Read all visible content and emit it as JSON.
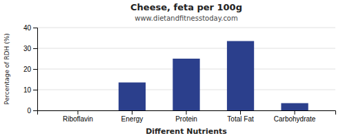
{
  "chart_data": {
    "type": "bar",
    "title": "Cheese, feta per 100g",
    "subtitle": "www.dietandfitnesstoday.com",
    "xlabel": "Different Nutrients",
    "ylabel": "Percentage of RDH (%)",
    "categories": [
      "Riboflavin",
      "Energy",
      "Protein",
      "Total Fat",
      "Carbohydrate"
    ],
    "values": [
      0,
      13.5,
      25,
      33.5,
      3.5
    ],
    "color": "#2b3f8c",
    "ylim": [
      0,
      40
    ],
    "yticks": [
      0,
      10,
      20,
      30,
      40
    ],
    "grid": true
  }
}
